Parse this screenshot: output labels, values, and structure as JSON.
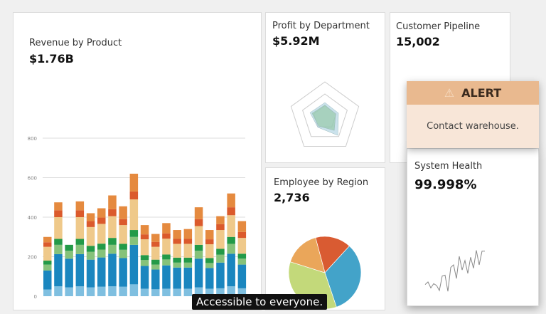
{
  "revenue": {
    "title": "Revenue by Product",
    "value": "$1.76B"
  },
  "profit": {
    "title": "Profit by Department",
    "value": "$5.92M"
  },
  "pipeline": {
    "title": "Customer Pipeline",
    "value": "15,002"
  },
  "employee": {
    "title": "Employee by Region",
    "value": "2,736"
  },
  "health": {
    "title": "System Health",
    "value": "99.998%"
  },
  "alert": {
    "icon": "warning-triangle-icon",
    "title": "ALERT",
    "message": "Contact warehouse."
  },
  "caption": "Accessible to everyone.",
  "chart_data": [
    {
      "type": "bar",
      "stacked": true,
      "ylim": [
        0,
        800
      ],
      "yticks": [
        "0",
        "200",
        "400",
        "600",
        "800"
      ],
      "grid": true,
      "colors": [
        "#7fbfe0",
        "#1a86bf",
        "#86c27a",
        "#239a48",
        "#efc98a",
        "#db5a2c",
        "#e58a3f"
      ],
      "values": [
        [
          34,
          96,
          30,
          20,
          70,
          23,
          27
        ],
        [
          50,
          163,
          47,
          30,
          110,
          35,
          40
        ],
        [
          45,
          145,
          40,
          30,
          0,
          0,
          0
        ],
        [
          50,
          163,
          47,
          30,
          110,
          35,
          45
        ],
        [
          45,
          140,
          40,
          30,
          95,
          30,
          40
        ],
        [
          48,
          148,
          40,
          30,
          100,
          32,
          47
        ],
        [
          50,
          165,
          45,
          35,
          110,
          35,
          70
        ],
        [
          48,
          145,
          42,
          30,
          95,
          30,
          65
        ],
        [
          60,
          200,
          40,
          35,
          155,
          40,
          90
        ],
        [
          38,
          115,
          30,
          25,
          80,
          25,
          47
        ],
        [
          35,
          100,
          25,
          25,
          65,
          25,
          40
        ],
        [
          38,
          118,
          30,
          25,
          80,
          27,
          52
        ],
        [
          38,
          107,
          25,
          25,
          70,
          25,
          45
        ],
        [
          38,
          107,
          25,
          25,
          70,
          25,
          50
        ],
        [
          45,
          145,
          40,
          30,
          95,
          35,
          60
        ],
        [
          38,
          105,
          25,
          25,
          70,
          25,
          47
        ],
        [
          40,
          130,
          40,
          30,
          95,
          30,
          40
        ],
        [
          50,
          165,
          50,
          35,
          110,
          40,
          70
        ],
        [
          40,
          120,
          30,
          25,
          80,
          30,
          55
        ]
      ]
    },
    {
      "type": "radar",
      "axes": 5,
      "series": [
        {
          "values": [
            0.35,
            0.32,
            0.45,
            0.3,
            0.38
          ],
          "color": "#8fc7a0"
        },
        {
          "values": [
            0.42,
            0.4,
            0.62,
            0.34,
            0.44
          ],
          "color": "#a9cfe0"
        }
      ]
    },
    {
      "type": "pie",
      "values": [
        16,
        33,
        35,
        16
      ],
      "colors": [
        "#d95b32",
        "#43a3c9",
        "#c3d97a",
        "#eaa65a"
      ]
    },
    {
      "type": "line",
      "values": [
        2,
        5,
        -2,
        3,
        1,
        -5,
        12,
        13,
        -6,
        22,
        25,
        9,
        35,
        19,
        30,
        15,
        34,
        21,
        42,
        25,
        41,
        41
      ]
    }
  ]
}
